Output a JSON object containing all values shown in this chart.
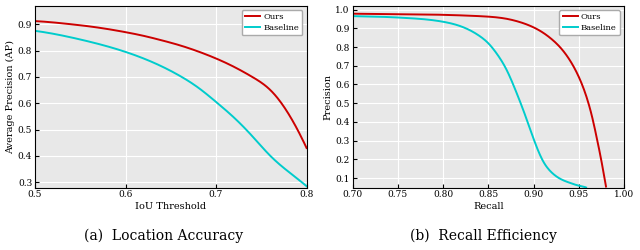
{
  "left": {
    "xlabel": "IoU Threshold",
    "ylabel": "Average Precision (AP)",
    "xlim": [
      0.5,
      0.8
    ],
    "ylim": [
      0.28,
      0.97
    ],
    "xticks": [
      0.5,
      0.6,
      0.7,
      0.8
    ],
    "yticks": [
      0.3,
      0.4,
      0.5,
      0.6,
      0.7,
      0.8,
      0.9
    ],
    "caption": "(a)  Location Accuracy",
    "ours_x": [
      0.5,
      0.52,
      0.54,
      0.56,
      0.58,
      0.6,
      0.62,
      0.64,
      0.66,
      0.68,
      0.7,
      0.72,
      0.74,
      0.76,
      0.78,
      0.8
    ],
    "ours_y": [
      0.912,
      0.907,
      0.9,
      0.892,
      0.882,
      0.87,
      0.856,
      0.839,
      0.82,
      0.797,
      0.77,
      0.738,
      0.7,
      0.65,
      0.56,
      0.43
    ],
    "base_x": [
      0.5,
      0.52,
      0.54,
      0.56,
      0.58,
      0.6,
      0.62,
      0.64,
      0.66,
      0.68,
      0.7,
      0.72,
      0.74,
      0.76,
      0.78,
      0.8
    ],
    "base_y": [
      0.875,
      0.864,
      0.85,
      0.834,
      0.816,
      0.795,
      0.77,
      0.74,
      0.704,
      0.66,
      0.605,
      0.545,
      0.475,
      0.4,
      0.34,
      0.285
    ]
  },
  "right": {
    "xlabel": "Recall",
    "ylabel": "Precision",
    "xlim": [
      0.7,
      1.0
    ],
    "ylim": [
      0.05,
      1.02
    ],
    "xticks": [
      0.7,
      0.75,
      0.8,
      0.85,
      0.9,
      0.95,
      1.0
    ],
    "yticks": [
      0.1,
      0.2,
      0.3,
      0.4,
      0.5,
      0.6,
      0.7,
      0.8,
      0.9,
      1.0
    ],
    "caption": "(b)  Recall Efficiency",
    "ours_x": [
      0.7,
      0.72,
      0.74,
      0.76,
      0.78,
      0.8,
      0.82,
      0.84,
      0.86,
      0.87,
      0.88,
      0.89,
      0.9,
      0.91,
      0.92,
      0.93,
      0.94,
      0.95,
      0.96,
      0.965,
      0.97,
      0.975,
      0.978,
      0.98
    ],
    "ours_y": [
      0.978,
      0.977,
      0.976,
      0.975,
      0.974,
      0.972,
      0.969,
      0.965,
      0.958,
      0.951,
      0.94,
      0.925,
      0.905,
      0.878,
      0.842,
      0.795,
      0.73,
      0.64,
      0.51,
      0.42,
      0.31,
      0.19,
      0.11,
      0.055
    ],
    "base_x": [
      0.7,
      0.72,
      0.74,
      0.76,
      0.78,
      0.8,
      0.82,
      0.84,
      0.85,
      0.86,
      0.87,
      0.88,
      0.89,
      0.9,
      0.91,
      0.92,
      0.93,
      0.94,
      0.95,
      0.955,
      0.958
    ],
    "base_y": [
      0.965,
      0.963,
      0.96,
      0.955,
      0.948,
      0.935,
      0.91,
      0.86,
      0.82,
      0.76,
      0.68,
      0.57,
      0.445,
      0.31,
      0.195,
      0.13,
      0.095,
      0.075,
      0.06,
      0.055,
      0.05
    ]
  },
  "ours_color": "#cc0000",
  "baseline_color": "#00cccc",
  "legend_ours": "Ours",
  "legend_base": "Baseline",
  "line_width": 1.4,
  "bg_color": "#e8e8e8",
  "grid_color": "#ffffff",
  "caption_fontsize": 10
}
